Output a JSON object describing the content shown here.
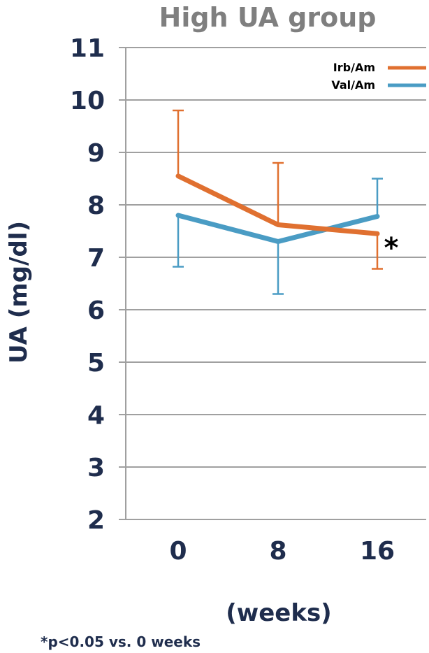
{
  "chart_data": {
    "type": "line",
    "title": "High UA group",
    "ylabel": "UA (mg/dl)",
    "xlabel": "(weeks)",
    "categories": [
      "0",
      "8",
      "16"
    ],
    "ylim": [
      2,
      11
    ],
    "yticks": [
      "2",
      "3",
      "4",
      "5",
      "6",
      "7",
      "8",
      "9",
      "10",
      "11"
    ],
    "grid": true,
    "legend_position": "top-right",
    "series": [
      {
        "name": "Irb/Am",
        "color": "#e07030",
        "values": [
          8.55,
          7.62,
          7.45
        ],
        "error_upper": [
          9.8,
          8.8,
          7.45
        ],
        "error_lower": [
          8.55,
          7.62,
          6.78
        ]
      },
      {
        "name": "Val/Am",
        "color": "#4a9cc4",
        "values": [
          7.8,
          7.3,
          7.78
        ],
        "error_upper": [
          7.8,
          7.3,
          8.5
        ],
        "error_lower": [
          6.82,
          6.3,
          7.78
        ]
      }
    ],
    "annotation": "*",
    "footnote": "*p<0.05 vs. 0 weeks"
  },
  "colors": {
    "axis_text": "#1f2d4d",
    "title_text": "#7f7f7f",
    "grid": "#a0a0a0"
  }
}
